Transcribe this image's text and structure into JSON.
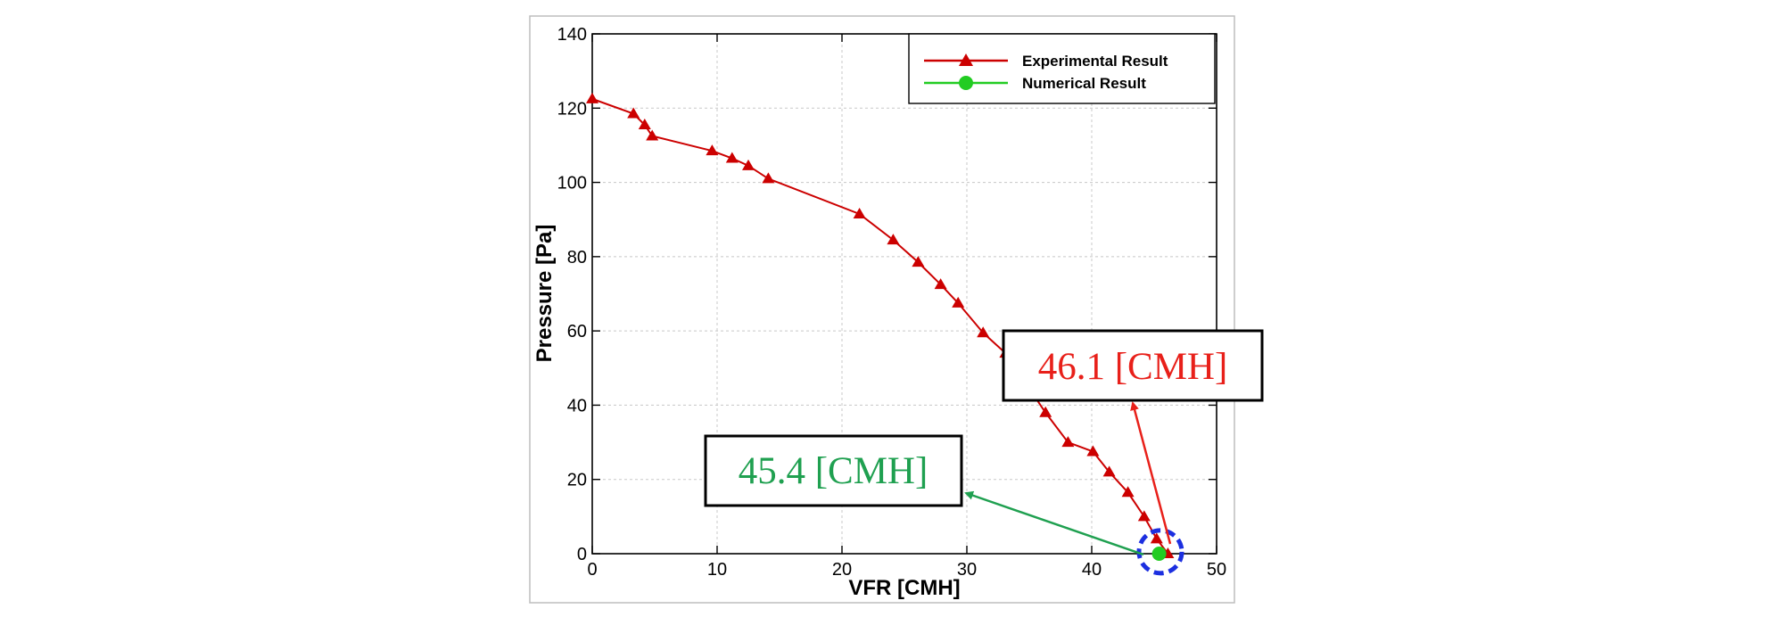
{
  "chart_data": {
    "type": "line",
    "title": "",
    "xlabel": "VFR [CMH]",
    "ylabel": "Pressure [Pa]",
    "xlim": [
      0,
      50
    ],
    "ylim": [
      0,
      140
    ],
    "xticks": [
      0,
      10,
      20,
      30,
      40,
      50
    ],
    "yticks": [
      0,
      20,
      40,
      60,
      80,
      100,
      120,
      140
    ],
    "grid": true,
    "legend_position": "top-right",
    "series": [
      {
        "name": "Experimental Result",
        "color": "#cc0000",
        "marker": "triangle",
        "x": [
          0,
          3.3,
          4.2,
          4.8,
          9.6,
          11.2,
          12.5,
          14.1,
          21.4,
          24.1,
          26.1,
          27.9,
          29.3,
          31.3,
          33.1,
          36.3,
          38.1,
          40.1,
          41.4,
          42.9,
          44.2,
          45.2,
          46.1
        ],
        "y": [
          122.5,
          118.5,
          115.5,
          112.5,
          108.5,
          106.5,
          104.5,
          101,
          91.5,
          84.5,
          78.5,
          72.5,
          67.5,
          59.5,
          54,
          38,
          30,
          27.5,
          22,
          16.5,
          10,
          4,
          0
        ]
      },
      {
        "name": "Numerical Result",
        "color": "#22cc22",
        "marker": "circle",
        "x": [
          45.4
        ],
        "y": [
          0
        ]
      }
    ],
    "annotations": [
      {
        "text": "46.1 [CMH]",
        "color": "#e8201a",
        "target_series": "Experimental Result"
      },
      {
        "text": "45.4 [CMH]",
        "color": "#1fa050",
        "target_series": "Numerical Result"
      }
    ],
    "highlight": {
      "shape": "dashed-circle",
      "color": "#1c2fe0",
      "center": [
        45.5,
        0.5
      ]
    }
  }
}
